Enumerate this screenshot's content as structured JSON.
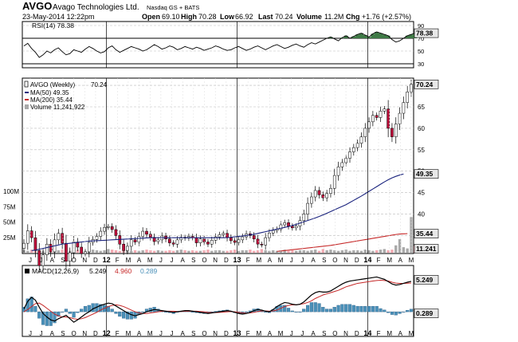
{
  "header": {
    "symbol": "AVGO",
    "company": "Avago Technologies Ltd.",
    "exchange": "Nasdaq GS + BATS",
    "datetime": "23-May-2014 12:22pm",
    "quote": {
      "open_label": "Open",
      "open": "69.10",
      "high_label": "High",
      "high": "70.28",
      "low_label": "Low",
      "low": "66.92",
      "last_label": "Last",
      "last": "70.24",
      "volume_label": "Volume",
      "volume": "11.2M",
      "chg_label": "Chg",
      "chg": "+1.76 (+2.57%)"
    }
  },
  "colors": {
    "frame": "#000000",
    "grid": "#bbbbbb",
    "rsi_line": "#000000",
    "rsi_fill": "#3f7a46",
    "candle_up": "#ffffff",
    "candle_down": "#c0103c",
    "ma50": "#1a237e",
    "ma200": "#c62828",
    "volume_up": "#a9a9a9",
    "volume_down": "#f2a8b0",
    "macd_line": "#000000",
    "signal_line": "#c62828",
    "hist": "#4a90b8",
    "hist_outline": "#1c4f7a",
    "badge_bg": "#e8e8e8"
  },
  "chart_data": [
    {
      "type": "line",
      "panel": "rsi",
      "legend": "RSI(14) 78.38",
      "ylim": [
        25,
        95
      ],
      "yticks": [
        "90",
        "70",
        "50",
        "30"
      ],
      "reference_lines": [
        70,
        30
      ],
      "last_badge": "78.38",
      "values": [
        58,
        62,
        54,
        48,
        40,
        44,
        50,
        47,
        52,
        55,
        49,
        44,
        46,
        52,
        50,
        48,
        53,
        57,
        54,
        50,
        47,
        49,
        55,
        58,
        52,
        48,
        51,
        54,
        57,
        55,
        53,
        50,
        52,
        56,
        60,
        57,
        53,
        55,
        58,
        56,
        52,
        54,
        57,
        55,
        53,
        56,
        54,
        51,
        53,
        55,
        58,
        56,
        53,
        51,
        52,
        55,
        57,
        54,
        51,
        53,
        56,
        58,
        55,
        52,
        55,
        58,
        60,
        57,
        54,
        56,
        59,
        61,
        58,
        56,
        60,
        63,
        61,
        64,
        67,
        70,
        72,
        69,
        66,
        71,
        74,
        70,
        73,
        76,
        78,
        75,
        72,
        77,
        80,
        78,
        76,
        74,
        68,
        64,
        66,
        70,
        74,
        76,
        78
      ]
    },
    {
      "type": "candlestick",
      "panel": "price",
      "legend": {
        "series": "AVGO (Weekly)",
        "last": "70.24"
      },
      "ylim": [
        31,
        71.5
      ],
      "yticks": [
        "70",
        "65",
        "60",
        "55",
        "50",
        "45",
        "40",
        "35"
      ],
      "closes": [
        33.2,
        36.1,
        34.5,
        31.5,
        28,
        30.5,
        33,
        31.2,
        34,
        35.5,
        33.2,
        29,
        31,
        33.5,
        32.3,
        30.8,
        31.2,
        33.4,
        34.1,
        34.8,
        36,
        36.9,
        37.1,
        36.4,
        35,
        33,
        31.5,
        32.5,
        34,
        33.5,
        34.8,
        36,
        35.3,
        34.6,
        33.6,
        34,
        34.9,
        34.2,
        33.3,
        33,
        34,
        34.6,
        34.4,
        34.8,
        34.5,
        33.3,
        34.2,
        33.5,
        33,
        33.9,
        34.7,
        35.2,
        35.5,
        34.5,
        33.8,
        33.4,
        34,
        34.7,
        35.4,
        35,
        34.2,
        33,
        32.8,
        34.5,
        35.6,
        36.2,
        36.5,
        37.5,
        38,
        37.2,
        36.8,
        37.2,
        38.5,
        40,
        42.5,
        44,
        45.5,
        44.5,
        43.8,
        44.8,
        46,
        49,
        51,
        52,
        53,
        54.5,
        55.5,
        56.5,
        58,
        60,
        61.5,
        63,
        62.5,
        64,
        64.5,
        60,
        58,
        61,
        63.5,
        66,
        68.48,
        70.24
      ]
    },
    {
      "type": "line",
      "panel": "price",
      "name": "MA(50)",
      "legend": "MA(50) 49.35",
      "last_badge": "49.35",
      "start_index": 2,
      "values": [
        31.5,
        31.6,
        31.8,
        32,
        32.2,
        32.4,
        32.6,
        32.8,
        33,
        33.1,
        33.2,
        33.3,
        33.4,
        33.5,
        33.6,
        33.7,
        33.75,
        33.8,
        33.85,
        33.9,
        33.95,
        34,
        34.05,
        34.1,
        34.15,
        34.2,
        34.25,
        34.3,
        34.35,
        34.4,
        34.45,
        34.5,
        34.5,
        34.5,
        34.5,
        34.5,
        34.5,
        34.5,
        34.5,
        34.5,
        34.5,
        34.5,
        34.5,
        34.5,
        34.5,
        34.5,
        34.5,
        34.5,
        34.5,
        34.5,
        34.5,
        34.5,
        34.6,
        34.7,
        34.8,
        34.9,
        35,
        35.15,
        35.3,
        35.5,
        35.7,
        35.9,
        36.1,
        36.3,
        36.5,
        36.7,
        36.9,
        37.1,
        37.35,
        37.6,
        37.9,
        38.2,
        38.5,
        38.8,
        39.1,
        39.45,
        39.8,
        40.2,
        40.6,
        41,
        41.4,
        41.8,
        42.2,
        42.7,
        43.2,
        43.7,
        44.2,
        44.75,
        45.3,
        45.85,
        46.4,
        46.95,
        47.5,
        48,
        48.45,
        48.8,
        49.1,
        49.35
      ]
    },
    {
      "type": "line",
      "panel": "price",
      "name": "MA(200)",
      "legend": "MA(200) 35.44",
      "last_badge": "35.44",
      "start_index": 66,
      "values": [
        31.3,
        31.4,
        31.5,
        31.6,
        31.7,
        31.8,
        31.9,
        32,
        32.1,
        32.2,
        32.3,
        32.4,
        32.5,
        32.6,
        32.7,
        32.85,
        33,
        33.15,
        33.3,
        33.45,
        33.6,
        33.75,
        33.9,
        34.05,
        34.2,
        34.35,
        34.5,
        34.65,
        34.8,
        34.95,
        35.1,
        35.25,
        35.35,
        35.4,
        35.44
      ]
    },
    {
      "type": "bar",
      "panel": "volume",
      "legend": "Volume 11,241,922",
      "yticks": [
        "100M",
        "75M",
        "50M",
        "25M"
      ],
      "ylim": [
        0,
        100
      ],
      "unit": "M",
      "last_badge": "11.241",
      "values": [
        4,
        3,
        5,
        6,
        4,
        3,
        7,
        5,
        4,
        4,
        5,
        6,
        3,
        4,
        5,
        4,
        3,
        4,
        5,
        4,
        3,
        4,
        6,
        5,
        4,
        3,
        5,
        4,
        3,
        4,
        3,
        4,
        5,
        4,
        3,
        4,
        3,
        3,
        4,
        3,
        4,
        5,
        4,
        3,
        4,
        3,
        3,
        4,
        5,
        3,
        4,
        4,
        3,
        3,
        4,
        5,
        3,
        4,
        4,
        5,
        3,
        4,
        6,
        4,
        3,
        4,
        3,
        4,
        5,
        3,
        4,
        3,
        4,
        4,
        3,
        4,
        5,
        3,
        6,
        4,
        5,
        4,
        3,
        4,
        5,
        3,
        4,
        4,
        3,
        5,
        4,
        3,
        4,
        5,
        6,
        4,
        5,
        12,
        22,
        9,
        7,
        58,
        11.24
      ]
    },
    {
      "type": "line",
      "panel": "macd",
      "legend": {
        "label": "MACD(12,26,9)",
        "macd": "5.249",
        "signal": "4.960",
        "hist": "0.289"
      },
      "ylim": [
        -2.6,
        6.2
      ],
      "zero_level": 0,
      "macd_badge": "5.249",
      "hist_badge": "0.289",
      "macd": [
        0.5,
        1.8,
        2.5,
        2,
        0.8,
        -0.3,
        -0.9,
        -1.4,
        -1.6,
        -1.2,
        -0.9,
        -0.6,
        -1.2,
        -1.8,
        -1.4,
        -0.9,
        -0.4,
        0,
        0.5,
        0.8,
        1.1,
        1.3,
        1.5,
        1.4,
        1,
        0.6,
        0.2,
        -0.2,
        -0.5,
        -0.7,
        -0.5,
        -0.3,
        0,
        0.2,
        0.4,
        0.3,
        0.2,
        0.1,
        0,
        -0.1,
        0,
        0.1,
        0.2,
        0.2,
        0.1,
        0,
        -0.1,
        -0.2,
        -0.3,
        -0.2,
        -0.1,
        0,
        0.1,
        0.2,
        0.1,
        -0.1,
        -0.3,
        -0.4,
        -0.3,
        -0.1,
        0.2,
        0.4,
        0.3,
        0.1,
        0,
        0.4,
        0.9,
        1.3,
        1.6,
        1.5,
        1.3,
        1.2,
        1.3,
        1.7,
        2.3,
        2.9,
        3.3,
        3.5,
        3.4,
        3.4,
        3.6,
        4,
        4.4,
        4.8,
        5.1,
        5.3,
        5.4,
        5.5,
        5.6,
        5.7,
        5.8,
        5.9,
        6,
        5.8,
        5.6,
        5.2,
        4.8,
        4.6,
        4.7,
        4.9,
        5.1,
        5.249
      ],
      "signal": [
        0,
        0.4,
        0.9,
        1.4,
        1.5,
        1.1,
        0.6,
        0.1,
        -0.4,
        -0.7,
        -0.9,
        -0.9,
        -1,
        -1.2,
        -1.3,
        -1.2,
        -1,
        -0.7,
        -0.4,
        -0.1,
        0.3,
        0.6,
        0.9,
        1.1,
        1.2,
        1.1,
        0.9,
        0.6,
        0.3,
        0,
        -0.2,
        -0.3,
        -0.3,
        -0.2,
        -0.1,
        0,
        0.1,
        0.1,
        0.1,
        0.1,
        0.05,
        0.05,
        0.1,
        0.1,
        0.1,
        0.1,
        0.05,
        0,
        -0.1,
        -0.15,
        -0.15,
        -0.1,
        -0.05,
        0,
        0.05,
        0,
        -0.1,
        -0.2,
        -0.25,
        -0.2,
        -0.1,
        0.05,
        0.15,
        0.15,
        0.1,
        0.15,
        0.3,
        0.6,
        0.9,
        1.1,
        1.2,
        1.2,
        1.3,
        1.4,
        1.6,
        1.9,
        2.3,
        2.6,
        2.9,
        3.1,
        3.3,
        3.5,
        3.7,
        4,
        4.3,
        4.5,
        4.7,
        4.9,
        5,
        5.1,
        5.2,
        5.3,
        5.4,
        5.45,
        5.4,
        5.3,
        5.1,
        4.95,
        4.9,
        4.9,
        4.93,
        4.96
      ]
    },
    {
      "type": "axis",
      "x_tick_labels": [
        "J",
        "J",
        "A",
        "S",
        "O",
        "N",
        "D",
        "12",
        "F",
        "M",
        "A",
        "M",
        "J",
        "J",
        "A",
        "S",
        "O",
        "N",
        "D",
        "13",
        "F",
        "M",
        "A",
        "M",
        "J",
        "J",
        "A",
        "S",
        "O",
        "N",
        "D",
        "14",
        "F",
        "M",
        "A",
        "M"
      ],
      "year_labels": [
        "12",
        "13",
        "14"
      ]
    }
  ]
}
